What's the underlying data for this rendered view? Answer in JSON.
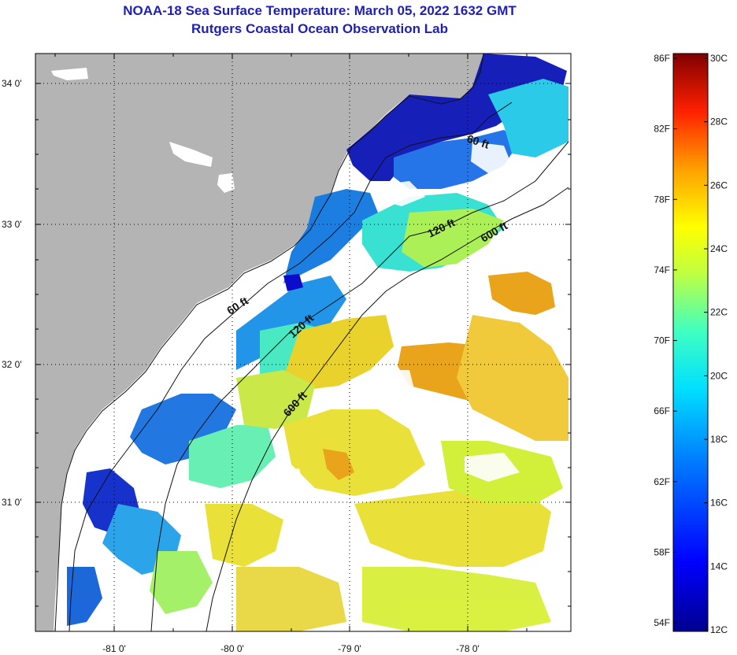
{
  "title": {
    "line1": "NOAA-18 Sea Surface Temperature:  March 05, 2022 1632 GMT",
    "line2": "Rutgers Coastal Ocean Observation Lab"
  },
  "map": {
    "lat_labels": [
      "34 0'",
      "33 0'",
      "32 0'",
      "31 0'"
    ],
    "lon_labels": [
      "-81 0'",
      "-80 0'",
      "-79 0'",
      "-78 0'"
    ],
    "contours": [
      {
        "label": "60 ft",
        "depth_ft": 60
      },
      {
        "label": "60 ft",
        "depth_ft": 60
      },
      {
        "label": "120 ft",
        "depth_ft": 120
      },
      {
        "label": "120 ft",
        "depth_ft": 120
      },
      {
        "label": "600 ft",
        "depth_ft": 600
      },
      {
        "label": "600 ft",
        "depth_ft": 600
      }
    ]
  },
  "colorbar": {
    "f_labels": [
      "86F",
      "82F",
      "78F",
      "74F",
      "70F",
      "66F",
      "62F",
      "58F",
      "54F"
    ],
    "c_labels": [
      "30C",
      "28C",
      "26C",
      "24C",
      "22C",
      "20C",
      "18C",
      "16C",
      "14C",
      "12C"
    ],
    "min_c": 12,
    "max_c": 30
  },
  "colors": {
    "land": "#b4b4b4",
    "title": "#1f1fb4",
    "cold": "#0a14b4",
    "warm": "#e8a010"
  }
}
